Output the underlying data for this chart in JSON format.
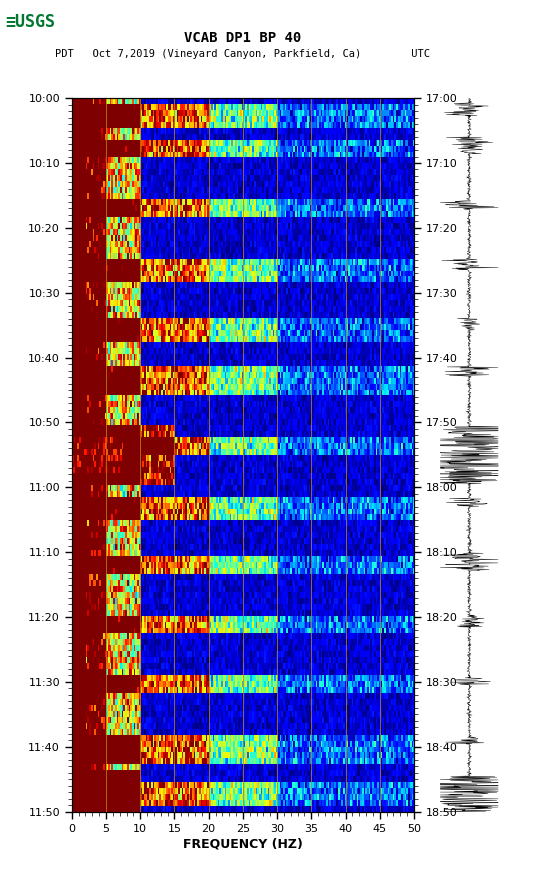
{
  "title_line1": "VCAB DP1 BP 40",
  "title_line2": "PDT   Oct 7,2019 (Vineyard Canyon, Parkfield, Ca)        UTC",
  "left_times": [
    "10:00",
    "10:10",
    "10:20",
    "10:30",
    "10:40",
    "10:50",
    "11:00",
    "11:10",
    "11:20",
    "11:30",
    "11:40",
    "11:50"
  ],
  "right_times": [
    "17:00",
    "17:10",
    "17:20",
    "17:30",
    "17:40",
    "17:50",
    "18:00",
    "18:10",
    "18:20",
    "18:30",
    "18:40",
    "18:50"
  ],
  "freq_min": 0,
  "freq_max": 50,
  "freq_ticks": [
    0,
    5,
    10,
    15,
    20,
    25,
    30,
    35,
    40,
    45,
    50
  ],
  "xlabel": "FREQUENCY (HZ)",
  "n_time_steps": 120,
  "n_freq_bins": 200,
  "background_color": "#ffffff",
  "spectrogram_colormap": "jet",
  "grid_color": "#b8860b",
  "grid_linewidth": 0.7,
  "fig_width": 5.52,
  "fig_height": 8.92
}
